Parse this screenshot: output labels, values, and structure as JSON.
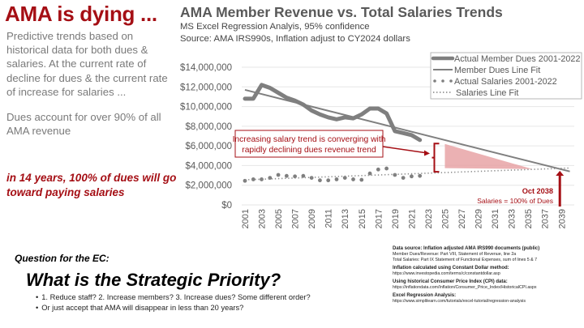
{
  "left_panel": {
    "headline": "AMA is dying ...",
    "intro": "Predictive trends based on historical data for both dues & salaries. At the current rate of decline for dues & the current rate of increase for salaries ...",
    "dues_note": "Dues account for over 90% of all AMA revenue",
    "callout": "in 14 years, 100% of dues will go toward paying salaries"
  },
  "chart_header": {
    "title": "AMA Member Revenue vs. Total Salaries Trends",
    "subtitle1": "MS Excel Regression Analyis, 95% confidence",
    "subtitle2": "Source: AMA IRS990s, Inflation adjust to CY2024 dollars"
  },
  "annotations": {
    "convergence_box": "Increasing salary trend is converging with rapidly declining dues revenue trend",
    "crossover_date": "Oct 2038",
    "crossover_label": "Salaries = 100% of Dues"
  },
  "colors": {
    "accent_red": "#a50f15",
    "series_gray": "#7f7f7f",
    "gap_fill": "#e8a3a6",
    "gridline": "#e6e6e6"
  },
  "chart_data": {
    "type": "line",
    "title": "AMA Member Revenue vs. Total Salaries Trends",
    "xlabel": "",
    "ylabel": "",
    "ylim": [
      0,
      14000000
    ],
    "xlim": [
      2001,
      2040
    ],
    "grid": true,
    "legend_position": "top-right",
    "y_ticks": [
      "$0",
      "$2,000,000",
      "$4,000,000",
      "$6,000,000",
      "$8,000,000",
      "$10,000,000",
      "$12,000,000",
      "$14,000,000"
    ],
    "y_tick_values": [
      0,
      2000000,
      4000000,
      6000000,
      8000000,
      10000000,
      12000000,
      14000000
    ],
    "x_ticks": [
      "2001",
      "2003",
      "2005",
      "2007",
      "2009",
      "2011",
      "2013",
      "2015",
      "2017",
      "2019",
      "2021",
      "2023",
      "2025",
      "2027",
      "2029",
      "2031",
      "2033",
      "2035",
      "2037",
      "2039"
    ],
    "series": [
      {
        "name": "Actual Member Dues 2001-2022",
        "style": "thick-solid",
        "x": [
          2001,
          2002,
          2003,
          2004,
          2005,
          2006,
          2007,
          2008,
          2009,
          2010,
          2011,
          2012,
          2013,
          2014,
          2015,
          2016,
          2017,
          2018,
          2019,
          2020,
          2021,
          2022
        ],
        "values": [
          10800000,
          10800000,
          12200000,
          11900000,
          11400000,
          10900000,
          10600000,
          10200000,
          9600000,
          9200000,
          8900000,
          8700000,
          8900000,
          8800000,
          9200000,
          9800000,
          9800000,
          9300000,
          7500000,
          7300000,
          7100000,
          6600000
        ]
      },
      {
        "name": "Member Dues Line Fit",
        "style": "solid",
        "x": [
          2001,
          2040
        ],
        "values": [
          11700000,
          3400000
        ]
      },
      {
        "name": "Actual Salaries 2001-2022",
        "style": "dots",
        "x": [
          2001,
          2002,
          2003,
          2004,
          2005,
          2006,
          2007,
          2008,
          2009,
          2010,
          2011,
          2012,
          2013,
          2014,
          2015,
          2016,
          2017,
          2018,
          2019,
          2020,
          2021,
          2022
        ],
        "values": [
          2450000,
          2600000,
          2600000,
          2750000,
          3050000,
          2950000,
          2900000,
          2950000,
          2750000,
          2500000,
          2500000,
          2600000,
          2750000,
          2600000,
          2550000,
          3200000,
          3600000,
          3700000,
          3050000,
          2750000,
          2900000,
          2950000
        ]
      },
      {
        "name": "Salaries Line Fit",
        "style": "dotted",
        "x": [
          2001,
          2040
        ],
        "values": [
          2550000,
          3750000
        ]
      }
    ],
    "gap_shading": {
      "x_start": 2025,
      "x_end": 2035.5
    },
    "crossover_x": 2038.8
  },
  "question": {
    "label": "Question for the EC:",
    "title": "What is the Strategic Priority?",
    "bullets": [
      "1. Reduce staff? 2. Increase members? 3. Increase dues? Some different order?",
      "Or just accept that AMA will disappear in less than 20 years?"
    ]
  },
  "sources": [
    {
      "heading": "Data source: Inflation adjusted AMA IRS990 documents (public)",
      "lines": [
        "Member Dues/Revenue: Part VIII, Statement of Revenue, line 2a",
        "Total Salaries: Part IX Statement of Functional Expenses, sum of lines 5 & 7"
      ]
    },
    {
      "heading": "Inflation calculated using Constant Dollar method:",
      "lines": [
        "https://www.investopedia.com/terms/c/constantdollar.asp"
      ]
    },
    {
      "heading": "Using historical Consumer Price Index (CPI) data:",
      "lines": [
        "https://inflationdata.com/Inflation/Consumer_Price_Index/HistoricalCPI.aspx"
      ]
    },
    {
      "heading": "Excel Regression Analysis:",
      "lines": [
        "https://www.simplilearn.com/tutorials/excel-tutorial/regression-analysis"
      ]
    }
  ]
}
